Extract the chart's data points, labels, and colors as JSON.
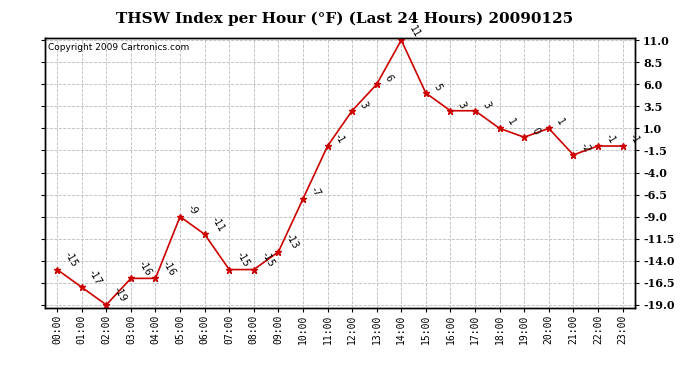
{
  "title": "THSW Index per Hour (°F) (Last 24 Hours) 20090125",
  "copyright": "Copyright 2009 Cartronics.com",
  "hours": [
    "00:00",
    "01:00",
    "02:00",
    "03:00",
    "04:00",
    "05:00",
    "06:00",
    "07:00",
    "08:00",
    "09:00",
    "10:00",
    "11:00",
    "12:00",
    "13:00",
    "14:00",
    "15:00",
    "16:00",
    "17:00",
    "18:00",
    "19:00",
    "20:00",
    "21:00",
    "22:00",
    "23:00"
  ],
  "values": [
    -15,
    -17,
    -19,
    -16,
    -16,
    -9,
    -11,
    -15,
    -15,
    -13,
    -7,
    -1,
    3,
    6,
    11,
    5,
    3,
    3,
    1,
    0,
    1,
    -2,
    -1,
    -1
  ],
  "line_color": "#cc0000",
  "marker_color": "#cc0000",
  "bg_color": "#ffffff",
  "grid_color": "#bbbbbb",
  "ylim_min": -19.0,
  "ylim_max": 11.0,
  "yticks": [
    -19.0,
    -16.5,
    -14.0,
    -11.5,
    -9.0,
    -6.5,
    -4.0,
    -1.5,
    1.0,
    3.5,
    6.0,
    8.5,
    11.0
  ],
  "title_fontsize": 11,
  "label_fontsize": 7,
  "annot_fontsize": 7,
  "copyright_fontsize": 6.5,
  "tick_fontsize": 8
}
